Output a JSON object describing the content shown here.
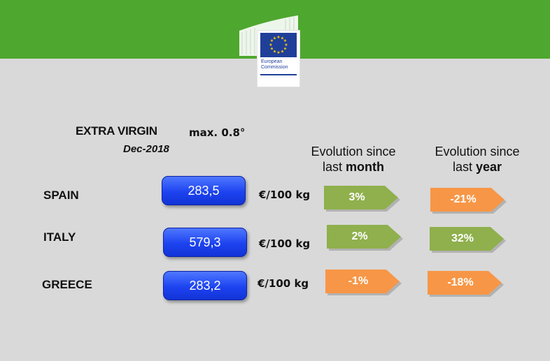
{
  "header": {
    "logo_line1": "European",
    "logo_line2": "Commission",
    "colors": {
      "band": "#4ea72e",
      "flag": "#1f3f99",
      "star": "#ffcc00"
    }
  },
  "title": {
    "product": "EXTRA VIRGIN",
    "acidity": "max. 0.8°",
    "period": "Dec-2018"
  },
  "columns": {
    "month": {
      "line1": "Evolution  since",
      "line2_prefix": "last ",
      "line2_bold": "month"
    },
    "year": {
      "line1": "Evolution  since",
      "line2_prefix": "last ",
      "line2_bold": "year"
    }
  },
  "colors": {
    "positive": "#8fb04d",
    "negative": "#f79646",
    "price": "#1d43f0"
  },
  "rows": [
    {
      "country": "SPAIN",
      "price": "283,5",
      "unit": "€/100 kg",
      "month": "3%",
      "month_trend": "positive",
      "year": "-21%",
      "year_trend": "negative"
    },
    {
      "country": "ITALY",
      "price": "579,3",
      "unit": "€/100 kg",
      "month": "2%",
      "month_trend": "positive",
      "year": "32%",
      "year_trend": "positive"
    },
    {
      "country": "GREECE",
      "price": "283,2",
      "unit": "€/100 kg",
      "month": "-1%",
      "month_trend": "negative",
      "year": "-18%",
      "year_trend": "negative"
    }
  ]
}
